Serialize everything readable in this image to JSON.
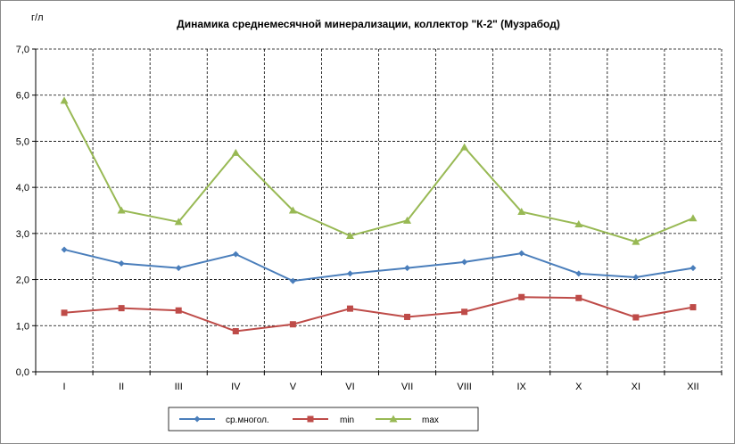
{
  "chart_data": {
    "type": "line",
    "title": "Динамика среднемесячной минерализации, коллектор \"К-2\" (Музрабод)",
    "ylabel": "г/л",
    "xlabel": "",
    "ylim": [
      0,
      7
    ],
    "yticks": [
      "0,0",
      "1,0",
      "2,0",
      "3,0",
      "4,0",
      "5,0",
      "6,0",
      "7,0"
    ],
    "categories": [
      "I",
      "II",
      "III",
      "IV",
      "V",
      "VI",
      "VII",
      "VIII",
      "IX",
      "X",
      "XI",
      "XII"
    ],
    "grid": true,
    "legend_position": "bottom",
    "series": [
      {
        "name": "ср.многол.",
        "color": "#4a7ebb",
        "marker": "diamond",
        "values": [
          2.65,
          2.35,
          2.25,
          2.55,
          1.97,
          2.13,
          2.25,
          2.38,
          2.57,
          2.13,
          2.05,
          2.25
        ]
      },
      {
        "name": "min",
        "color": "#be4b48",
        "marker": "square",
        "values": [
          1.28,
          1.38,
          1.33,
          0.88,
          1.03,
          1.37,
          1.19,
          1.3,
          1.62,
          1.6,
          1.18,
          1.4
        ]
      },
      {
        "name": "max",
        "color": "#98b954",
        "marker": "triangle",
        "values": [
          5.88,
          3.5,
          3.25,
          4.75,
          3.5,
          2.95,
          3.28,
          4.87,
          3.47,
          3.2,
          2.82,
          3.33
        ]
      }
    ]
  }
}
